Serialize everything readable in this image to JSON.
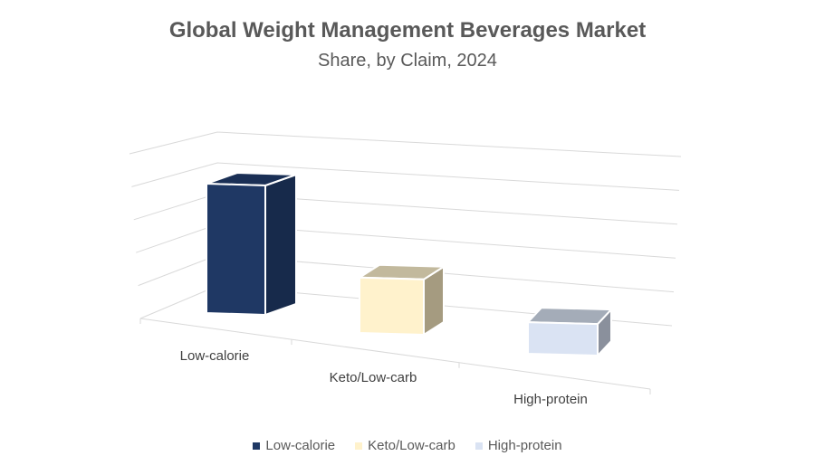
{
  "chart_data": {
    "type": "bar",
    "title": "Global Weight Management Beverages Market",
    "subtitle": "Share, by Claim, 2024",
    "categories": [
      "Low-calorie",
      "Keto/Low-carb",
      "High-protein"
    ],
    "values": [
      55,
      24,
      14
    ],
    "ylim": [
      0,
      60
    ],
    "grid": true,
    "legend": "bottom",
    "colors": [
      "#1f3864",
      "#fff2cc",
      "#dae3f3"
    ],
    "side_colors": [
      "#172a4b",
      "#a59b80",
      "#8a909c"
    ],
    "top_colors": [
      "#1a2f55",
      "#c2b99d",
      "#a4acb8"
    ]
  }
}
